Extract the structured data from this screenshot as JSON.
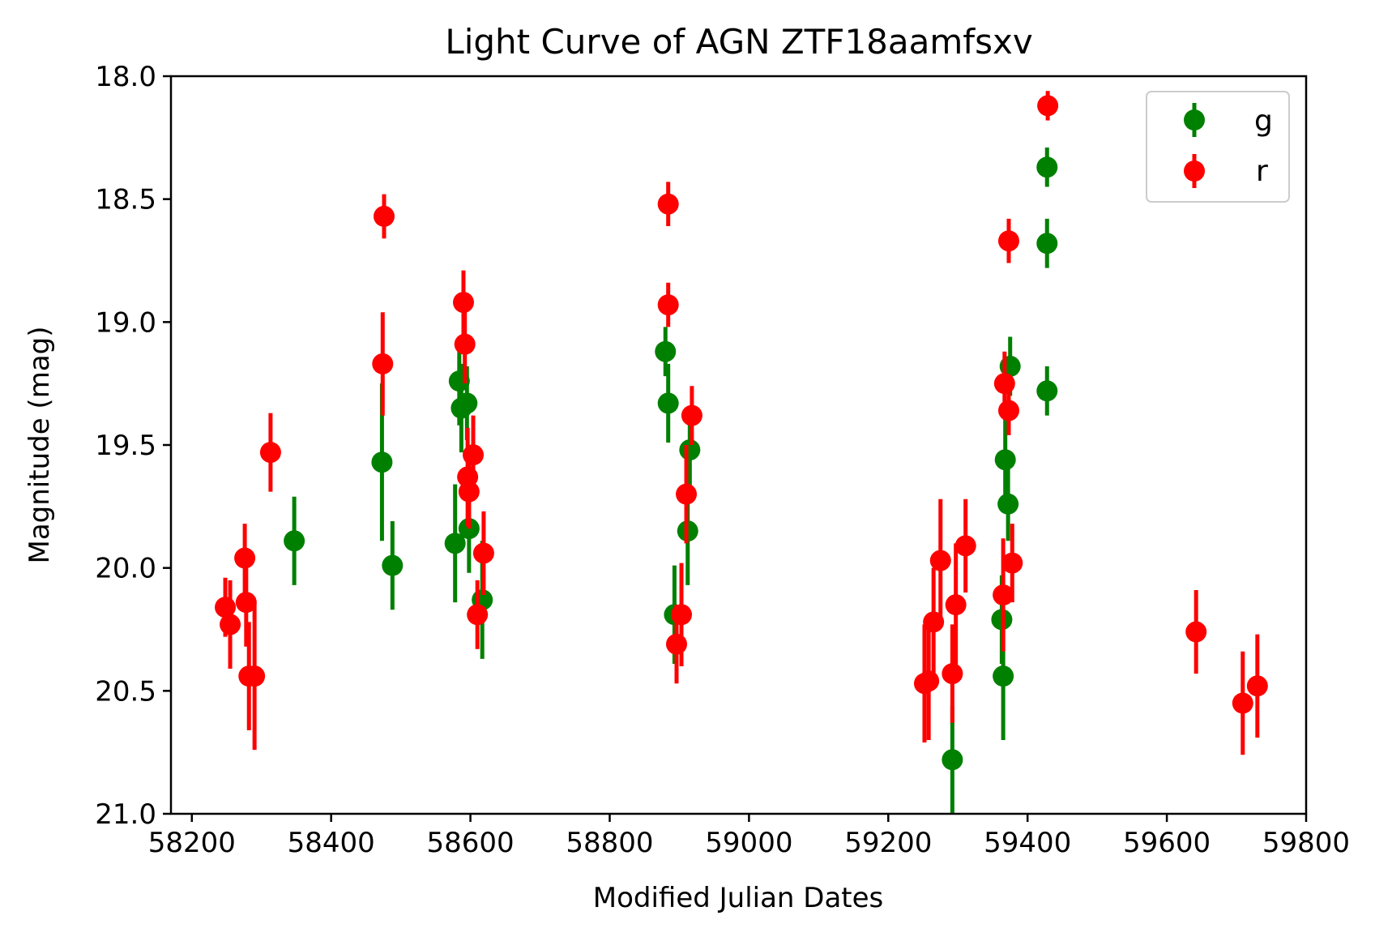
{
  "chart_data": {
    "type": "scatter",
    "title": "Light Curve of AGN ZTF18aamfsxv",
    "xlabel": "Modified Julian Dates",
    "ylabel": "Magnitude (mag)",
    "xlim": [
      58170,
      59800
    ],
    "ylim": [
      21.0,
      18.0
    ],
    "y_inverted": true,
    "xticks": [
      58200,
      58400,
      58600,
      58800,
      59000,
      59200,
      59400,
      59600,
      59800
    ],
    "yticks": [
      18.0,
      18.5,
      19.0,
      19.5,
      20.0,
      20.5,
      21.0
    ],
    "xtick_labels": [
      "58200",
      "58400",
      "58600",
      "58800",
      "59000",
      "59200",
      "59400",
      "59600",
      "59800"
    ],
    "ytick_labels": [
      "18.0",
      "18.5",
      "19.0",
      "19.5",
      "20.0",
      "20.5",
      "21.0"
    ],
    "grid": false,
    "legend_position": "top-right",
    "series": [
      {
        "name": "g",
        "color": "#008000",
        "points": [
          {
            "x": 58347,
            "y": 19.89,
            "err": 0.18
          },
          {
            "x": 58473,
            "y": 19.57,
            "err": 0.32
          },
          {
            "x": 58488,
            "y": 19.99,
            "err": 0.18
          },
          {
            "x": 58578,
            "y": 19.9,
            "err": 0.24
          },
          {
            "x": 58584,
            "y": 19.24,
            "err": 0.18
          },
          {
            "x": 58587,
            "y": 19.35,
            "err": 0.18
          },
          {
            "x": 58595,
            "y": 19.33,
            "err": 0.15
          },
          {
            "x": 58598,
            "y": 19.84,
            "err": 0.18
          },
          {
            "x": 58617,
            "y": 20.13,
            "err": 0.24
          },
          {
            "x": 58880,
            "y": 19.12,
            "err": 0.1
          },
          {
            "x": 58884,
            "y": 19.33,
            "err": 0.16
          },
          {
            "x": 58893,
            "y": 20.19,
            "err": 0.2
          },
          {
            "x": 58912,
            "y": 19.85,
            "err": 0.22
          },
          {
            "x": 58915,
            "y": 19.52,
            "err": 0.18
          },
          {
            "x": 59292,
            "y": 20.78,
            "err": 0.22
          },
          {
            "x": 59363,
            "y": 20.21,
            "err": 0.18
          },
          {
            "x": 59365,
            "y": 20.44,
            "err": 0.26
          },
          {
            "x": 59368,
            "y": 19.56,
            "err": 0.2
          },
          {
            "x": 59372,
            "y": 19.74,
            "err": 0.15
          },
          {
            "x": 59375,
            "y": 19.18,
            "err": 0.12
          },
          {
            "x": 59428,
            "y": 18.37,
            "err": 0.08
          },
          {
            "x": 59428,
            "y": 18.68,
            "err": 0.1
          },
          {
            "x": 59428,
            "y": 19.28,
            "err": 0.1
          }
        ]
      },
      {
        "name": "r",
        "color": "#ff0000",
        "points": [
          {
            "x": 58248,
            "y": 20.16,
            "err": 0.12
          },
          {
            "x": 58255,
            "y": 20.23,
            "err": 0.18
          },
          {
            "x": 58276,
            "y": 19.96,
            "err": 0.14
          },
          {
            "x": 58278,
            "y": 20.14,
            "err": 0.18
          },
          {
            "x": 58282,
            "y": 20.44,
            "err": 0.22
          },
          {
            "x": 58290,
            "y": 20.44,
            "err": 0.3
          },
          {
            "x": 58313,
            "y": 19.53,
            "err": 0.16
          },
          {
            "x": 58474,
            "y": 19.17,
            "err": 0.21
          },
          {
            "x": 58476,
            "y": 18.57,
            "err": 0.09
          },
          {
            "x": 58590,
            "y": 18.92,
            "err": 0.13
          },
          {
            "x": 58592,
            "y": 19.09,
            "err": 0.16
          },
          {
            "x": 58596,
            "y": 19.63,
            "err": 0.2
          },
          {
            "x": 58598,
            "y": 19.69,
            "err": 0.15
          },
          {
            "x": 58604,
            "y": 19.54,
            "err": 0.16
          },
          {
            "x": 58610,
            "y": 20.19,
            "err": 0.14
          },
          {
            "x": 58619,
            "y": 19.94,
            "err": 0.17
          },
          {
            "x": 58884,
            "y": 18.52,
            "err": 0.09
          },
          {
            "x": 58884,
            "y": 18.93,
            "err": 0.09
          },
          {
            "x": 58896,
            "y": 20.31,
            "err": 0.16
          },
          {
            "x": 58903,
            "y": 20.19,
            "err": 0.21
          },
          {
            "x": 58910,
            "y": 19.7,
            "err": 0.2
          },
          {
            "x": 58918,
            "y": 19.38,
            "err": 0.12
          },
          {
            "x": 59252,
            "y": 20.47,
            "err": 0.24
          },
          {
            "x": 59258,
            "y": 20.46,
            "err": 0.24
          },
          {
            "x": 59265,
            "y": 20.22,
            "err": 0.22
          },
          {
            "x": 59275,
            "y": 19.97,
            "err": 0.25
          },
          {
            "x": 59292,
            "y": 20.43,
            "err": 0.2
          },
          {
            "x": 59297,
            "y": 20.15,
            "err": 0.25
          },
          {
            "x": 59311,
            "y": 19.91,
            "err": 0.19
          },
          {
            "x": 59365,
            "y": 20.11,
            "err": 0.23
          },
          {
            "x": 59367,
            "y": 19.25,
            "err": 0.13
          },
          {
            "x": 59373,
            "y": 19.36,
            "err": 0.1
          },
          {
            "x": 59373,
            "y": 18.67,
            "err": 0.09
          },
          {
            "x": 59378,
            "y": 19.98,
            "err": 0.16
          },
          {
            "x": 59429,
            "y": 18.12,
            "err": 0.06
          },
          {
            "x": 59642,
            "y": 20.26,
            "err": 0.17
          },
          {
            "x": 59709,
            "y": 20.55,
            "err": 0.21
          },
          {
            "x": 59730,
            "y": 20.48,
            "err": 0.21
          }
        ]
      }
    ]
  }
}
